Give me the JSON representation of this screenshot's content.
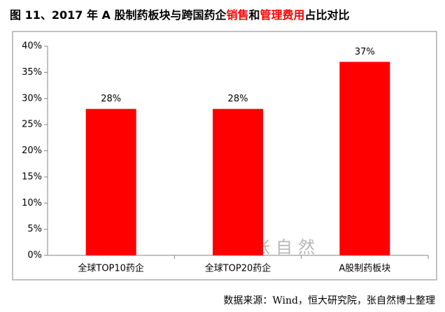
{
  "chart_data": {
    "type": "bar",
    "title_parts": [
      {
        "text": "图 11、2017 年 A 股制药板块与跨国药企",
        "color": "#000000"
      },
      {
        "text": "销售",
        "color": "#ff0000"
      },
      {
        "text": "和",
        "color": "#000000"
      },
      {
        "text": "管理费用",
        "color": "#ff0000"
      },
      {
        "text": "占比对比",
        "color": "#000000"
      }
    ],
    "categories": [
      "全球TOP10药企",
      "全球TOP20药企",
      "A股制药板块"
    ],
    "values": [
      28,
      28,
      37
    ],
    "value_labels": [
      "28%",
      "28%",
      "37%"
    ],
    "color": "#ff0000",
    "ylim": [
      0,
      40
    ],
    "yticks": [
      {
        "value": 0,
        "label": "0%"
      },
      {
        "value": 5,
        "label": "5%"
      },
      {
        "value": 10,
        "label": "10%"
      },
      {
        "value": 15,
        "label": "15%"
      },
      {
        "value": 20,
        "label": "20%"
      },
      {
        "value": 25,
        "label": "25%"
      },
      {
        "value": 30,
        "label": "30%"
      },
      {
        "value": 35,
        "label": "35%"
      },
      {
        "value": 40,
        "label": "40%"
      }
    ],
    "grid": false,
    "watermark": "张自然",
    "source": "数据来源：Wind，恒大研究院，张自然博士整理"
  }
}
